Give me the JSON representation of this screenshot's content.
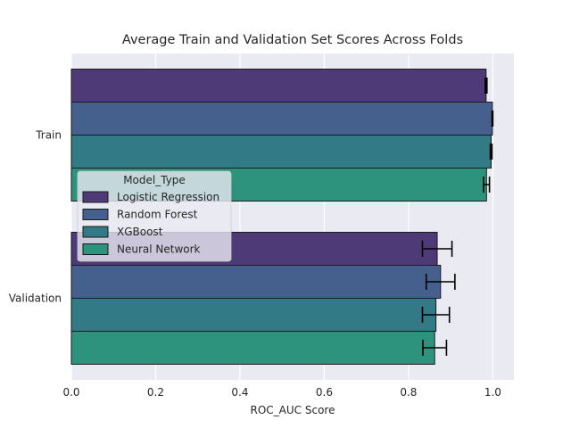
{
  "chart_data": {
    "type": "bar",
    "orientation": "horizontal",
    "title": "Average Train and Validation Set Scores Across Folds",
    "xlabel": "ROC_AUC Score",
    "ylabel": "",
    "xlim": [
      0,
      1.05
    ],
    "x_ticks": [
      "0.0",
      "0.2",
      "0.4",
      "0.6",
      "0.8",
      "1.0"
    ],
    "grid": true,
    "categories": [
      "Train",
      "Validation"
    ],
    "legend": {
      "title": "Model_Type",
      "placement": "center-left"
    },
    "series": [
      {
        "name": "Logistic Regression",
        "color": "#4f3a78",
        "values": [
          0.984,
          0.868
        ],
        "errors": [
          0.002,
          0.035
        ]
      },
      {
        "name": "Random Forest",
        "color": "#46608e",
        "values": [
          0.999,
          0.876
        ],
        "errors": [
          0.001,
          0.034
        ]
      },
      {
        "name": "XGBoost",
        "color": "#327a86",
        "values": [
          0.996,
          0.865
        ],
        "errors": [
          0.002,
          0.032
        ]
      },
      {
        "name": "Neural Network",
        "color": "#2e937c",
        "values": [
          0.985,
          0.862
        ],
        "errors": [
          0.007,
          0.028
        ]
      }
    ]
  }
}
